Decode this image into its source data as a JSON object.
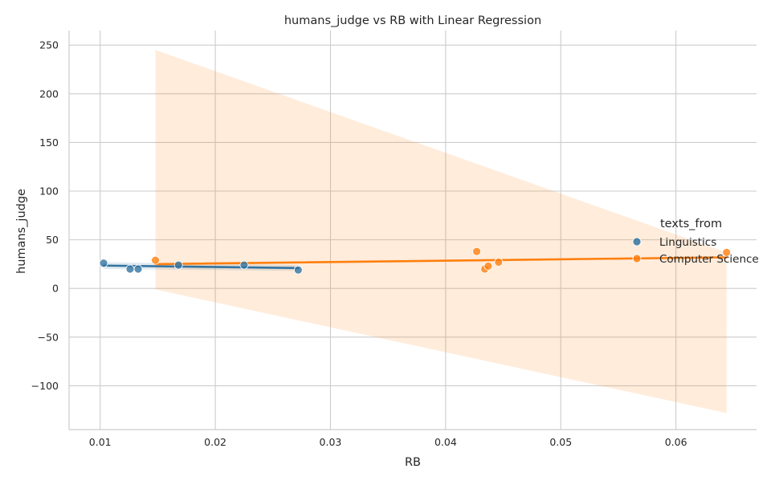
{
  "chart_data": {
    "type": "scatter",
    "title": "humans_judge vs RB with Linear Regression",
    "xlabel": "RB",
    "ylabel": "humans_judge",
    "xlim": [
      0.0073,
      0.067
    ],
    "ylim": [
      -145,
      265
    ],
    "x_ticks": [
      0.01,
      0.02,
      0.03,
      0.04,
      0.05,
      0.06
    ],
    "x_tick_labels": [
      "0.01",
      "0.02",
      "0.03",
      "0.04",
      "0.05",
      "0.06"
    ],
    "y_ticks": [
      -100,
      -50,
      0,
      50,
      100,
      150,
      200,
      250
    ],
    "y_tick_labels": [
      "−100",
      "−50",
      "0",
      "50",
      "100",
      "150",
      "200",
      "250"
    ],
    "grid": true,
    "legend": {
      "title": "texts_from",
      "position": "right",
      "entries": [
        "Linguistics",
        "Computer Science"
      ]
    },
    "series": [
      {
        "name": "Linguistics",
        "color": "#3274a1",
        "points": [
          {
            "x": 0.0103,
            "y": 26
          },
          {
            "x": 0.0126,
            "y": 20
          },
          {
            "x": 0.0133,
            "y": 20
          },
          {
            "x": 0.0168,
            "y": 24
          },
          {
            "x": 0.0225,
            "y": 24
          },
          {
            "x": 0.0272,
            "y": 19
          }
        ],
        "regression": {
          "x": [
            0.0103,
            0.0272
          ],
          "y": [
            23.5,
            21
          ],
          "ci_upper": [
            27,
            24
          ],
          "ci_lower": [
            20,
            18
          ]
        }
      },
      {
        "name": "Computer Science",
        "color": "#ff7f0e",
        "points": [
          {
            "x": 0.0148,
            "y": 29
          },
          {
            "x": 0.0427,
            "y": 38
          },
          {
            "x": 0.0434,
            "y": 20
          },
          {
            "x": 0.0437,
            "y": 23
          },
          {
            "x": 0.0446,
            "y": 27
          },
          {
            "x": 0.0644,
            "y": 37
          }
        ],
        "regression": {
          "x": [
            0.0148,
            0.0644
          ],
          "y": [
            25,
            32
          ],
          "ci_upper": [
            245,
            37
          ],
          "ci_lower": [
            -1,
            -128
          ]
        }
      }
    ]
  }
}
